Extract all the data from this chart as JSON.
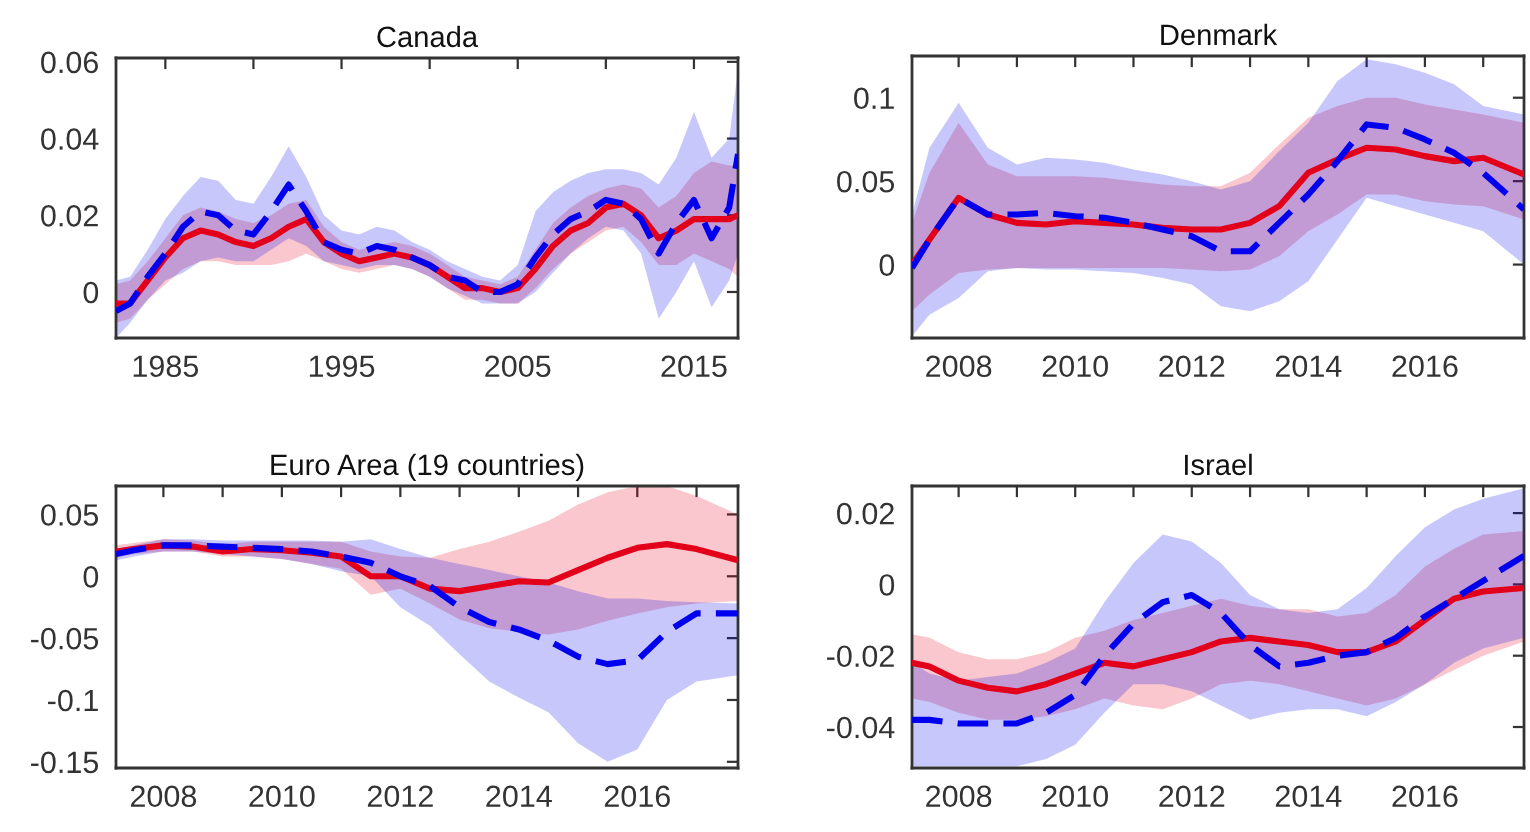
{
  "chart_data": [
    {
      "type": "line",
      "title": "Canada",
      "x": [
        1982.2,
        1983,
        1984,
        1985,
        1986,
        1987,
        1988,
        1989,
        1990,
        1991,
        1992,
        1993,
        1994,
        1995,
        1996,
        1997,
        1998,
        1999,
        2000,
        2001,
        2002,
        2003,
        2004,
        2005,
        2006,
        2007,
        2008,
        2009,
        2010,
        2011,
        2012,
        2013,
        2014,
        2015,
        2016,
        2017,
        2017.5
      ],
      "series": [
        {
          "color": "#e2001a",
          "line_style": "solid",
          "values": [
            -0.003,
            -0.003,
            0.003,
            0.009,
            0.014,
            0.016,
            0.015,
            0.013,
            0.012,
            0.014,
            0.017,
            0.019,
            0.013,
            0.01,
            0.008,
            0.009,
            0.01,
            0.009,
            0.007,
            0.004,
            0.001,
            0.001,
            0.0,
            0.001,
            0.006,
            0.012,
            0.016,
            0.018,
            0.022,
            0.023,
            0.02,
            0.014,
            0.016,
            0.019,
            0.019,
            0.019,
            0.02
          ],
          "lower": [
            -0.008,
            -0.007,
            -0.002,
            0.002,
            0.006,
            0.008,
            0.008,
            0.007,
            0.007,
            0.007,
            0.008,
            0.01,
            0.008,
            0.006,
            0.005,
            0.006,
            0.007,
            0.006,
            0.004,
            0.001,
            -0.002,
            -0.002,
            -0.003,
            -0.003,
            0.001,
            0.006,
            0.01,
            0.013,
            0.016,
            0.017,
            0.013,
            0.007,
            0.007,
            0.01,
            0.008,
            0.006,
            0.004
          ],
          "upper": [
            0.002,
            0.003,
            0.008,
            0.014,
            0.02,
            0.022,
            0.021,
            0.019,
            0.018,
            0.02,
            0.023,
            0.024,
            0.017,
            0.013,
            0.011,
            0.012,
            0.013,
            0.012,
            0.01,
            0.007,
            0.004,
            0.003,
            0.002,
            0.004,
            0.011,
            0.018,
            0.022,
            0.025,
            0.027,
            0.028,
            0.027,
            0.022,
            0.025,
            0.031,
            0.034,
            0.033,
            0.033
          ]
        },
        {
          "color": "#0000ee",
          "line_style": "dashed",
          "values": [
            -0.005,
            -0.003,
            0.004,
            0.01,
            0.017,
            0.021,
            0.02,
            0.016,
            0.015,
            0.021,
            0.028,
            0.021,
            0.013,
            0.011,
            0.01,
            0.012,
            0.011,
            0.009,
            0.007,
            0.004,
            0.003,
            0.0,
            0.0,
            0.002,
            0.009,
            0.015,
            0.019,
            0.021,
            0.024,
            0.023,
            0.019,
            0.01,
            0.018,
            0.024,
            0.014,
            0.022,
            0.036
          ],
          "lower": [
            -0.012,
            -0.008,
            -0.002,
            0.003,
            0.005,
            0.008,
            0.009,
            0.008,
            0.008,
            0.011,
            0.014,
            0.012,
            0.008,
            0.007,
            0.006,
            0.007,
            0.007,
            0.006,
            0.004,
            0.001,
            -0.001,
            -0.003,
            -0.003,
            -0.003,
            0.0,
            0.005,
            0.01,
            0.014,
            0.017,
            0.016,
            0.01,
            -0.007,
            0.0,
            0.008,
            -0.004,
            0.003,
            0.01
          ],
          "upper": [
            0.003,
            0.004,
            0.011,
            0.019,
            0.025,
            0.03,
            0.029,
            0.024,
            0.023,
            0.03,
            0.038,
            0.03,
            0.02,
            0.016,
            0.015,
            0.017,
            0.016,
            0.013,
            0.011,
            0.008,
            0.006,
            0.004,
            0.003,
            0.007,
            0.021,
            0.026,
            0.029,
            0.031,
            0.032,
            0.032,
            0.031,
            0.028,
            0.035,
            0.047,
            0.035,
            0.04,
            0.058
          ]
        }
      ],
      "xlim": [
        1982.2,
        2017.5
      ],
      "xticks": [
        1985,
        {
          "value": 1990,
          "label": null
        },
        1995,
        {
          "value": 2000,
          "label": null
        },
        2005,
        {
          "value": 2010,
          "label": null
        },
        2015
      ],
      "ylim": [
        -0.012,
        0.061
      ],
      "yticks": [
        0,
        0.02,
        0.04,
        0.06
      ],
      "grid": false,
      "legend": false
    },
    {
      "type": "line",
      "title": "Denmark",
      "x": [
        2007.2,
        2007.5,
        2008,
        2008.5,
        2009,
        2009.5,
        2010,
        2010.5,
        2011,
        2011.5,
        2012,
        2012.5,
        2013,
        2013.5,
        2014,
        2014.5,
        2015,
        2015.5,
        2016,
        2016.5,
        2017,
        2017.7
      ],
      "series": [
        {
          "color": "#e2001a",
          "line_style": "solid",
          "values": [
            0.0,
            0.015,
            0.04,
            0.03,
            0.025,
            0.024,
            0.026,
            0.025,
            0.024,
            0.022,
            0.021,
            0.021,
            0.025,
            0.035,
            0.055,
            0.063,
            0.07,
            0.069,
            0.065,
            0.062,
            0.064,
            0.054
          ],
          "lower": [
            -0.028,
            -0.018,
            -0.005,
            -0.003,
            -0.002,
            -0.002,
            -0.002,
            -0.002,
            -0.002,
            -0.002,
            -0.003,
            -0.004,
            -0.003,
            0.005,
            0.02,
            0.03,
            0.042,
            0.042,
            0.038,
            0.036,
            0.035,
            0.027
          ],
          "upper": [
            0.025,
            0.055,
            0.085,
            0.06,
            0.053,
            0.053,
            0.053,
            0.052,
            0.05,
            0.048,
            0.047,
            0.047,
            0.055,
            0.072,
            0.088,
            0.095,
            0.1,
            0.1,
            0.096,
            0.093,
            0.09,
            0.085
          ]
        },
        {
          "color": "#0000ee",
          "line_style": "dashed",
          "values": [
            -0.002,
            0.015,
            0.04,
            0.03,
            0.03,
            0.031,
            0.029,
            0.028,
            0.025,
            0.021,
            0.017,
            0.008,
            0.008,
            0.025,
            0.042,
            0.062,
            0.084,
            0.082,
            0.075,
            0.067,
            0.055,
            0.033
          ],
          "lower": [
            -0.043,
            -0.03,
            -0.02,
            -0.004,
            -0.002,
            -0.003,
            -0.003,
            -0.004,
            -0.005,
            -0.008,
            -0.012,
            -0.025,
            -0.028,
            -0.022,
            -0.01,
            0.015,
            0.04,
            0.035,
            0.03,
            0.025,
            0.02,
            0.0
          ],
          "upper": [
            0.03,
            0.07,
            0.097,
            0.07,
            0.06,
            0.064,
            0.063,
            0.061,
            0.057,
            0.054,
            0.05,
            0.045,
            0.05,
            0.068,
            0.085,
            0.11,
            0.123,
            0.12,
            0.115,
            0.108,
            0.095,
            0.09
          ]
        }
      ],
      "xlim": [
        2007.2,
        2017.7
      ],
      "xticks": [
        2008,
        {
          "value": 2009,
          "label": null
        },
        2010,
        {
          "value": 2011,
          "label": null
        },
        2012,
        {
          "value": 2013,
          "label": null
        },
        2014,
        {
          "value": 2015,
          "label": null
        },
        2016,
        {
          "value": 2017,
          "label": null
        }
      ],
      "ylim": [
        -0.044,
        0.125
      ],
      "yticks": [
        0,
        0.05,
        0.1
      ],
      "grid": false,
      "legend": false
    },
    {
      "type": "line",
      "title": "Euro Area (19 countries)",
      "x": [
        2007.2,
        2007.5,
        2008,
        2008.5,
        2009,
        2009.5,
        2010,
        2010.5,
        2011,
        2011.5,
        2012,
        2012.5,
        2013,
        2013.5,
        2014,
        2014.5,
        2015,
        2015.5,
        2016,
        2016.5,
        2017,
        2017.7
      ],
      "series": [
        {
          "color": "#e2001a",
          "line_style": "solid",
          "values": [
            0.02,
            0.022,
            0.025,
            0.024,
            0.02,
            0.022,
            0.021,
            0.019,
            0.016,
            0.0,
            0.0,
            -0.01,
            -0.012,
            -0.008,
            -0.004,
            -0.005,
            0.005,
            0.015,
            0.023,
            0.026,
            0.022,
            0.013
          ],
          "lower": [
            0.015,
            0.018,
            0.02,
            0.02,
            0.016,
            0.016,
            0.014,
            0.01,
            0.006,
            -0.015,
            -0.01,
            -0.022,
            -0.035,
            -0.042,
            -0.045,
            -0.047,
            -0.043,
            -0.036,
            -0.03,
            -0.025,
            -0.022,
            -0.02
          ],
          "upper": [
            0.025,
            0.027,
            0.03,
            0.029,
            0.026,
            0.028,
            0.028,
            0.028,
            0.028,
            0.02,
            0.016,
            0.015,
            0.022,
            0.028,
            0.036,
            0.045,
            0.058,
            0.068,
            0.073,
            0.073,
            0.065,
            0.05
          ]
        },
        {
          "color": "#0000ee",
          "line_style": "dashed",
          "values": [
            0.018,
            0.021,
            0.025,
            0.025,
            0.024,
            0.023,
            0.022,
            0.02,
            0.016,
            0.011,
            0.0,
            -0.008,
            -0.025,
            -0.037,
            -0.043,
            -0.052,
            -0.065,
            -0.071,
            -0.068,
            -0.045,
            -0.03,
            -0.03
          ],
          "lower": [
            0.013,
            0.016,
            0.02,
            0.02,
            0.018,
            0.016,
            0.014,
            0.01,
            0.004,
            0.0,
            -0.025,
            -0.04,
            -0.063,
            -0.085,
            -0.098,
            -0.11,
            -0.135,
            -0.15,
            -0.14,
            -0.1,
            -0.085,
            -0.08
          ],
          "upper": [
            0.022,
            0.025,
            0.03,
            0.03,
            0.029,
            0.029,
            0.029,
            0.029,
            0.028,
            0.03,
            0.022,
            0.015,
            0.01,
            0.005,
            0.0,
            -0.005,
            -0.012,
            -0.018,
            -0.018,
            -0.02,
            -0.021,
            -0.022
          ]
        }
      ],
      "xlim": [
        2007.2,
        2017.7
      ],
      "xticks": [
        2008,
        {
          "value": 2009,
          "label": null
        },
        2010,
        {
          "value": 2011,
          "label": null
        },
        2012,
        {
          "value": 2013,
          "label": null
        },
        2014,
        {
          "value": 2015,
          "label": null
        },
        2016,
        {
          "value": 2017,
          "label": null
        }
      ],
      "ylim": [
        -0.155,
        0.073
      ],
      "yticks": [
        -0.15,
        -0.1,
        -0.05,
        0,
        0.05
      ],
      "grid": false,
      "legend": false
    },
    {
      "type": "line",
      "title": "Israel",
      "x": [
        2007.2,
        2007.5,
        2008,
        2008.5,
        2009,
        2009.5,
        2010,
        2010.5,
        2011,
        2011.5,
        2012,
        2012.5,
        2013,
        2013.5,
        2014,
        2014.5,
        2015,
        2015.5,
        2016,
        2016.5,
        2017,
        2017.7
      ],
      "series": [
        {
          "color": "#e2001a",
          "line_style": "solid",
          "values": [
            -0.022,
            -0.023,
            -0.027,
            -0.029,
            -0.03,
            -0.028,
            -0.025,
            -0.022,
            -0.023,
            -0.021,
            -0.019,
            -0.016,
            -0.015,
            -0.016,
            -0.017,
            -0.019,
            -0.019,
            -0.016,
            -0.01,
            -0.004,
            -0.002,
            -0.001
          ],
          "lower": [
            -0.032,
            -0.033,
            -0.036,
            -0.038,
            -0.038,
            -0.037,
            -0.035,
            -0.032,
            -0.034,
            -0.035,
            -0.032,
            -0.028,
            -0.027,
            -0.028,
            -0.03,
            -0.032,
            -0.034,
            -0.032,
            -0.028,
            -0.024,
            -0.02,
            -0.016
          ],
          "upper": [
            -0.014,
            -0.015,
            -0.019,
            -0.021,
            -0.021,
            -0.019,
            -0.015,
            -0.013,
            -0.01,
            -0.008,
            -0.006,
            -0.004,
            -0.006,
            -0.007,
            -0.007,
            -0.009,
            -0.008,
            -0.003,
            0.005,
            0.01,
            0.014,
            0.015
          ]
        },
        {
          "color": "#0000ee",
          "line_style": "dashed",
          "values": [
            -0.038,
            -0.038,
            -0.039,
            -0.039,
            -0.039,
            -0.036,
            -0.031,
            -0.02,
            -0.011,
            -0.005,
            -0.003,
            -0.008,
            -0.017,
            -0.023,
            -0.022,
            -0.02,
            -0.019,
            -0.015,
            -0.009,
            -0.004,
            0.001,
            0.008
          ],
          "lower": [
            -0.051,
            -0.051,
            -0.051,
            -0.051,
            -0.051,
            -0.049,
            -0.045,
            -0.036,
            -0.028,
            -0.028,
            -0.03,
            -0.034,
            -0.038,
            -0.036,
            -0.035,
            -0.035,
            -0.037,
            -0.033,
            -0.028,
            -0.022,
            -0.018,
            -0.015
          ],
          "upper": [
            -0.022,
            -0.025,
            -0.027,
            -0.026,
            -0.025,
            -0.022,
            -0.018,
            -0.005,
            0.006,
            0.014,
            0.012,
            0.006,
            -0.003,
            -0.007,
            -0.008,
            -0.007,
            -0.001,
            0.008,
            0.016,
            0.021,
            0.024,
            0.027
          ]
        }
      ],
      "xlim": [
        2007.2,
        2017.7
      ],
      "xticks": [
        2008,
        {
          "value": 2009,
          "label": null
        },
        2010,
        {
          "value": 2011,
          "label": null
        },
        2012,
        {
          "value": 2013,
          "label": null
        },
        2014,
        {
          "value": 2015,
          "label": null
        },
        2016,
        {
          "value": 2017,
          "label": null
        }
      ],
      "ylim": [
        -0.0515,
        0.0276
      ],
      "yticks": [
        -0.04,
        -0.02,
        0,
        0.02
      ],
      "grid": false,
      "legend": false
    }
  ]
}
